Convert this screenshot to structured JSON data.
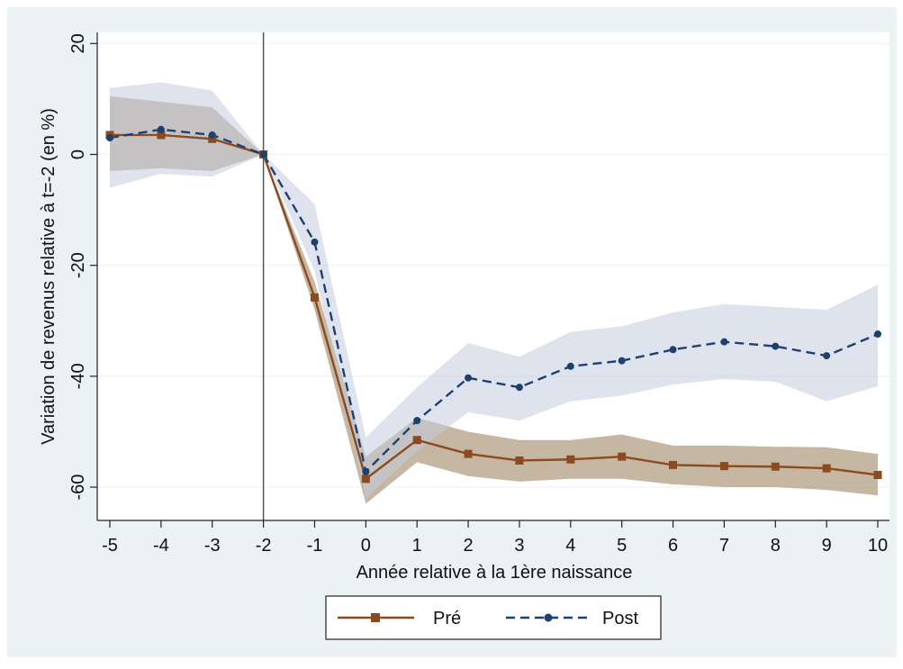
{
  "chart_data": {
    "type": "line",
    "xlabel": "Année relative à la 1ère naissance",
    "ylabel": "Variation de revenus relative à t=-2 (en %)",
    "xlim": [
      -5,
      10
    ],
    "ylim": [
      -66,
      22
    ],
    "x_ticks": [
      -5,
      -4,
      -3,
      -2,
      -1,
      0,
      1,
      2,
      3,
      4,
      5,
      6,
      7,
      8,
      9,
      10
    ],
    "y_ticks": [
      20,
      0,
      -20,
      -40,
      -60
    ],
    "reference_line_x": -2,
    "grid": true,
    "legend_position": "bottom",
    "x": [
      -5,
      -4,
      -3,
      -2,
      -1,
      0,
      1,
      2,
      3,
      4,
      5,
      6,
      7,
      8,
      9,
      10
    ],
    "series": [
      {
        "name": "Pré",
        "color": "#8b4a1f",
        "band_color": "#a89070",
        "line_style": "solid",
        "marker": "square",
        "values": [
          3.5,
          3.5,
          2.8,
          0,
          -25.8,
          -58.5,
          -51.5,
          -54.0,
          -55.2,
          -55.0,
          -54.5,
          -56.0,
          -56.2,
          -56.3,
          -56.6,
          -57.8
        ],
        "ci_lower": [
          -3.0,
          -2.5,
          -3.0,
          0,
          -28.0,
          -63.0,
          -55.5,
          -58.0,
          -59.0,
          -58.5,
          -58.5,
          -59.5,
          -60.0,
          -60.0,
          -60.5,
          -61.5
        ],
        "ci_upper": [
          10.5,
          9.5,
          8.5,
          0,
          -23.0,
          -54.5,
          -47.5,
          -50.0,
          -51.5,
          -51.5,
          -50.5,
          -52.5,
          -52.5,
          -52.7,
          -52.8,
          -54.0
        ]
      },
      {
        "name": "Post",
        "color": "#1f3f6e",
        "band_color": "#c4ccdf",
        "line_style": "dashed",
        "marker": "circle",
        "values": [
          3.0,
          4.5,
          3.5,
          0,
          -15.8,
          -57.2,
          -48.0,
          -40.3,
          -42.0,
          -38.2,
          -37.2,
          -35.2,
          -33.8,
          -34.6,
          -36.3,
          -32.4
        ],
        "ci_lower": [
          -6.0,
          -3.5,
          -4.0,
          0,
          -21.0,
          -62.0,
          -53.5,
          -46.5,
          -48.0,
          -44.5,
          -43.5,
          -41.5,
          -40.5,
          -41.0,
          -44.5,
          -41.8
        ],
        "ci_upper": [
          12.0,
          13.0,
          11.5,
          0,
          -9.0,
          -51.0,
          -42.0,
          -34.0,
          -36.5,
          -32.0,
          -31.0,
          -28.5,
          -27.0,
          -27.5,
          -28.0,
          -23.5
        ]
      }
    ]
  },
  "legend": {
    "items": [
      {
        "label": "Pré"
      },
      {
        "label": "Post"
      }
    ]
  }
}
